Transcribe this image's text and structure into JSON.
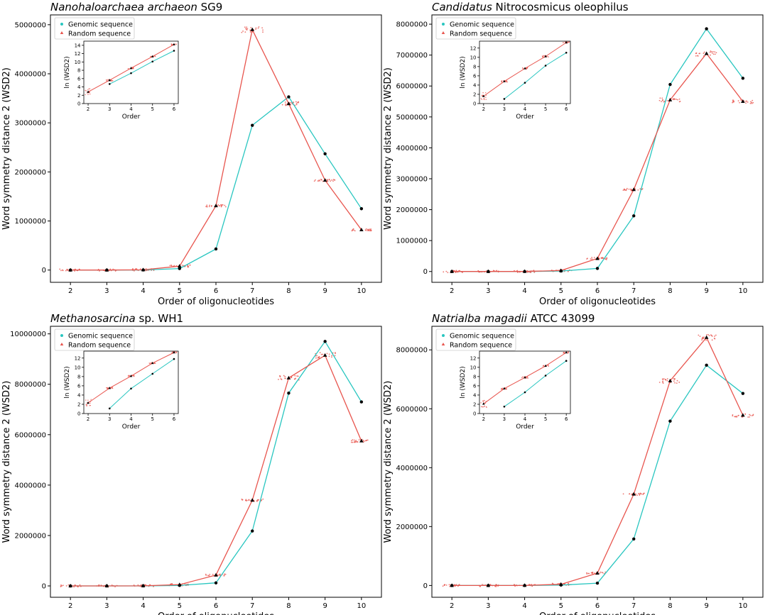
{
  "chart_data": [
    {
      "type": "line",
      "title": "Nanohaloarchaea archaeon SG9",
      "title_parts": [
        {
          "text": "Nanohaloarchaea archaeon",
          "italic": true
        },
        {
          "text": " SG9",
          "italic": false
        }
      ],
      "xlabel": "Order of oligonucleotides",
      "ylabel": "Word symmetry distance 2 (WSD2)",
      "x": [
        2,
        3,
        4,
        5,
        6,
        7,
        8,
        9,
        10
      ],
      "xlim": [
        1.45,
        10.55
      ],
      "ylim": [
        -250000,
        5200000
      ],
      "yticks": [
        0,
        1000000,
        2000000,
        3000000,
        4000000,
        5000000
      ],
      "ytick_labels": [
        "0",
        "1000000",
        "2000000",
        "3000000",
        "4000000",
        "5000000"
      ],
      "series": [
        {
          "name": "Genomic sequence",
          "color": "#29c6c0",
          "values": [
            0,
            0,
            2000,
            30000,
            430000,
            2950000,
            3530000,
            2370000,
            1250000
          ]
        },
        {
          "name": "Random sequence",
          "color": "#e8554e",
          "values": [
            0,
            0,
            5000,
            80000,
            1310000,
            4900000,
            3390000,
            1830000,
            820000
          ]
        }
      ],
      "legend": {
        "position": "top-left",
        "entries": [
          "Genomic sequence",
          "Random sequence"
        ]
      },
      "inset": {
        "xlabel": "Order",
        "ylabel": "ln (WSD2)",
        "x": [
          2,
          3,
          4,
          5,
          6
        ],
        "ylim": [
          0,
          15
        ],
        "yticks": [
          0,
          2,
          4,
          6,
          8,
          10,
          12,
          14
        ],
        "series": [
          {
            "name": "Genomic sequence",
            "values": [
              null,
              4.7,
              7.3,
              10.1,
              12.7
            ]
          },
          {
            "name": "Random sequence",
            "values": [
              2.8,
              5.6,
              8.5,
              11.3,
              14.2
            ]
          }
        ]
      }
    },
    {
      "type": "line",
      "title": "Candidatus Nitrocosmicus oleophilus",
      "title_parts": [
        {
          "text": "Candidatus",
          "italic": true
        },
        {
          "text": " Nitrocosmicus oleophilus",
          "italic": false
        }
      ],
      "xlabel": "Order of oligonucleotides",
      "ylabel": "Word symmetry distance 2 (WSD2)",
      "x": [
        2,
        3,
        4,
        5,
        6,
        7,
        8,
        9,
        10
      ],
      "xlim": [
        1.45,
        10.55
      ],
      "ylim": [
        -350000,
        8300000
      ],
      "yticks": [
        0,
        1000000,
        2000000,
        3000000,
        4000000,
        5000000,
        6000000,
        7000000,
        8000000
      ],
      "ytick_labels": [
        "0",
        "1000000",
        "2000000",
        "3000000",
        "4000000",
        "5000000",
        "6000000",
        "7000000",
        "8000000"
      ],
      "series": [
        {
          "name": "Genomic sequence",
          "color": "#29c6c0",
          "values": [
            0,
            0,
            500,
            15000,
            100000,
            1800000,
            6050000,
            7850000,
            6250000
          ]
        },
        {
          "name": "Random sequence",
          "color": "#e8554e",
          "values": [
            0,
            0,
            2000,
            30000,
            420000,
            2650000,
            5550000,
            7050000,
            5500000
          ]
        }
      ],
      "legend": {
        "position": "top-left",
        "entries": [
          "Genomic sequence",
          "Random sequence"
        ]
      },
      "inset": {
        "xlabel": "Order",
        "ylabel": "ln (WSD2)",
        "x": [
          2,
          3,
          4,
          5,
          6
        ],
        "ylim": [
          0,
          13.5
        ],
        "yticks": [
          0,
          2,
          4,
          6,
          8,
          10,
          12
        ],
        "series": [
          {
            "name": "Genomic sequence",
            "values": [
              null,
              1.0,
              4.5,
              8.2,
              11.0
            ]
          },
          {
            "name": "Random sequence",
            "values": [
              1.6,
              4.8,
              7.6,
              10.2,
              13.2
            ]
          }
        ]
      }
    },
    {
      "type": "line",
      "title": "Methanosarcina sp. WH1",
      "title_parts": [
        {
          "text": "Methanosarcina",
          "italic": true
        },
        {
          "text": " sp. WH1",
          "italic": false
        }
      ],
      "xlabel": "Order of oligonucleotides",
      "ylabel": "Word symmetry distance 2 (WSD2)",
      "x": [
        2,
        3,
        4,
        5,
        6,
        7,
        8,
        9,
        10
      ],
      "xlim": [
        1.45,
        10.55
      ],
      "ylim": [
        -450000,
        10300000
      ],
      "yticks": [
        0,
        2000000,
        4000000,
        6000000,
        8000000,
        10000000
      ],
      "ytick_labels": [
        "0",
        "2000000",
        "4000000",
        "6000000",
        "8000000",
        "10000000"
      ],
      "series": [
        {
          "name": "Genomic sequence",
          "color": "#29c6c0",
          "values": [
            0,
            0,
            1000,
            20000,
            120000,
            2180000,
            7650000,
            9700000,
            7300000
          ]
        },
        {
          "name": "Random sequence",
          "color": "#e8554e",
          "values": [
            0,
            0,
            3000,
            50000,
            430000,
            3400000,
            8250000,
            9150000,
            5750000
          ]
        }
      ],
      "legend": {
        "position": "top-left",
        "entries": [
          "Genomic sequence",
          "Random sequence"
        ]
      },
      "inset": {
        "xlabel": "Order",
        "ylabel": "ln (WSD2)",
        "x": [
          2,
          3,
          4,
          5,
          6
        ],
        "ylim": [
          0,
          13.5
        ],
        "yticks": [
          0,
          2,
          4,
          6,
          8,
          10,
          12
        ],
        "series": [
          {
            "name": "Genomic sequence",
            "values": [
              null,
              1.1,
              5.4,
              8.6,
              11.8
            ]
          },
          {
            "name": "Random sequence",
            "values": [
              2.3,
              5.5,
              8.1,
              10.9,
              13.2
            ]
          }
        ]
      }
    },
    {
      "type": "line",
      "title": "Natrialba magadii ATCC 43099",
      "title_parts": [
        {
          "text": "Natrialba magadii",
          "italic": true
        },
        {
          "text": " ATCC 43099",
          "italic": false
        }
      ],
      "xlabel": "Order of oligonucleotides",
      "ylabel": "Word symmetry distance 2 (WSD2)",
      "x": [
        2,
        3,
        4,
        5,
        6,
        7,
        8,
        9,
        10
      ],
      "xlim": [
        1.45,
        10.55
      ],
      "ylim": [
        -400000,
        8800000
      ],
      "yticks": [
        0,
        2000000,
        4000000,
        6000000,
        8000000
      ],
      "ytick_labels": [
        "0",
        "2000000",
        "4000000",
        "6000000",
        "8000000"
      ],
      "series": [
        {
          "name": "Genomic sequence",
          "color": "#29c6c0",
          "values": [
            0,
            0,
            500,
            15000,
            80000,
            1580000,
            5580000,
            7480000,
            6520000
          ]
        },
        {
          "name": "Random sequence",
          "color": "#e8554e",
          "values": [
            0,
            0,
            2000,
            40000,
            420000,
            3100000,
            6950000,
            8420000,
            5780000
          ]
        }
      ],
      "legend": {
        "position": "top-left",
        "entries": [
          "Genomic sequence",
          "Random sequence"
        ]
      },
      "inset": {
        "xlabel": "Order",
        "ylabel": "ln (WSD2)",
        "x": [
          2,
          3,
          4,
          5,
          6
        ],
        "ylim": [
          0,
          13.5
        ],
        "yticks": [
          0,
          2,
          4,
          6,
          8,
          10,
          12
        ],
        "series": [
          {
            "name": "Genomic sequence",
            "values": [
              null,
              1.5,
              4.6,
              8.2,
              11.4
            ]
          },
          {
            "name": "Random sequence",
            "values": [
              2.1,
              5.4,
              7.8,
              10.3,
              13.2
            ]
          }
        ]
      }
    }
  ]
}
